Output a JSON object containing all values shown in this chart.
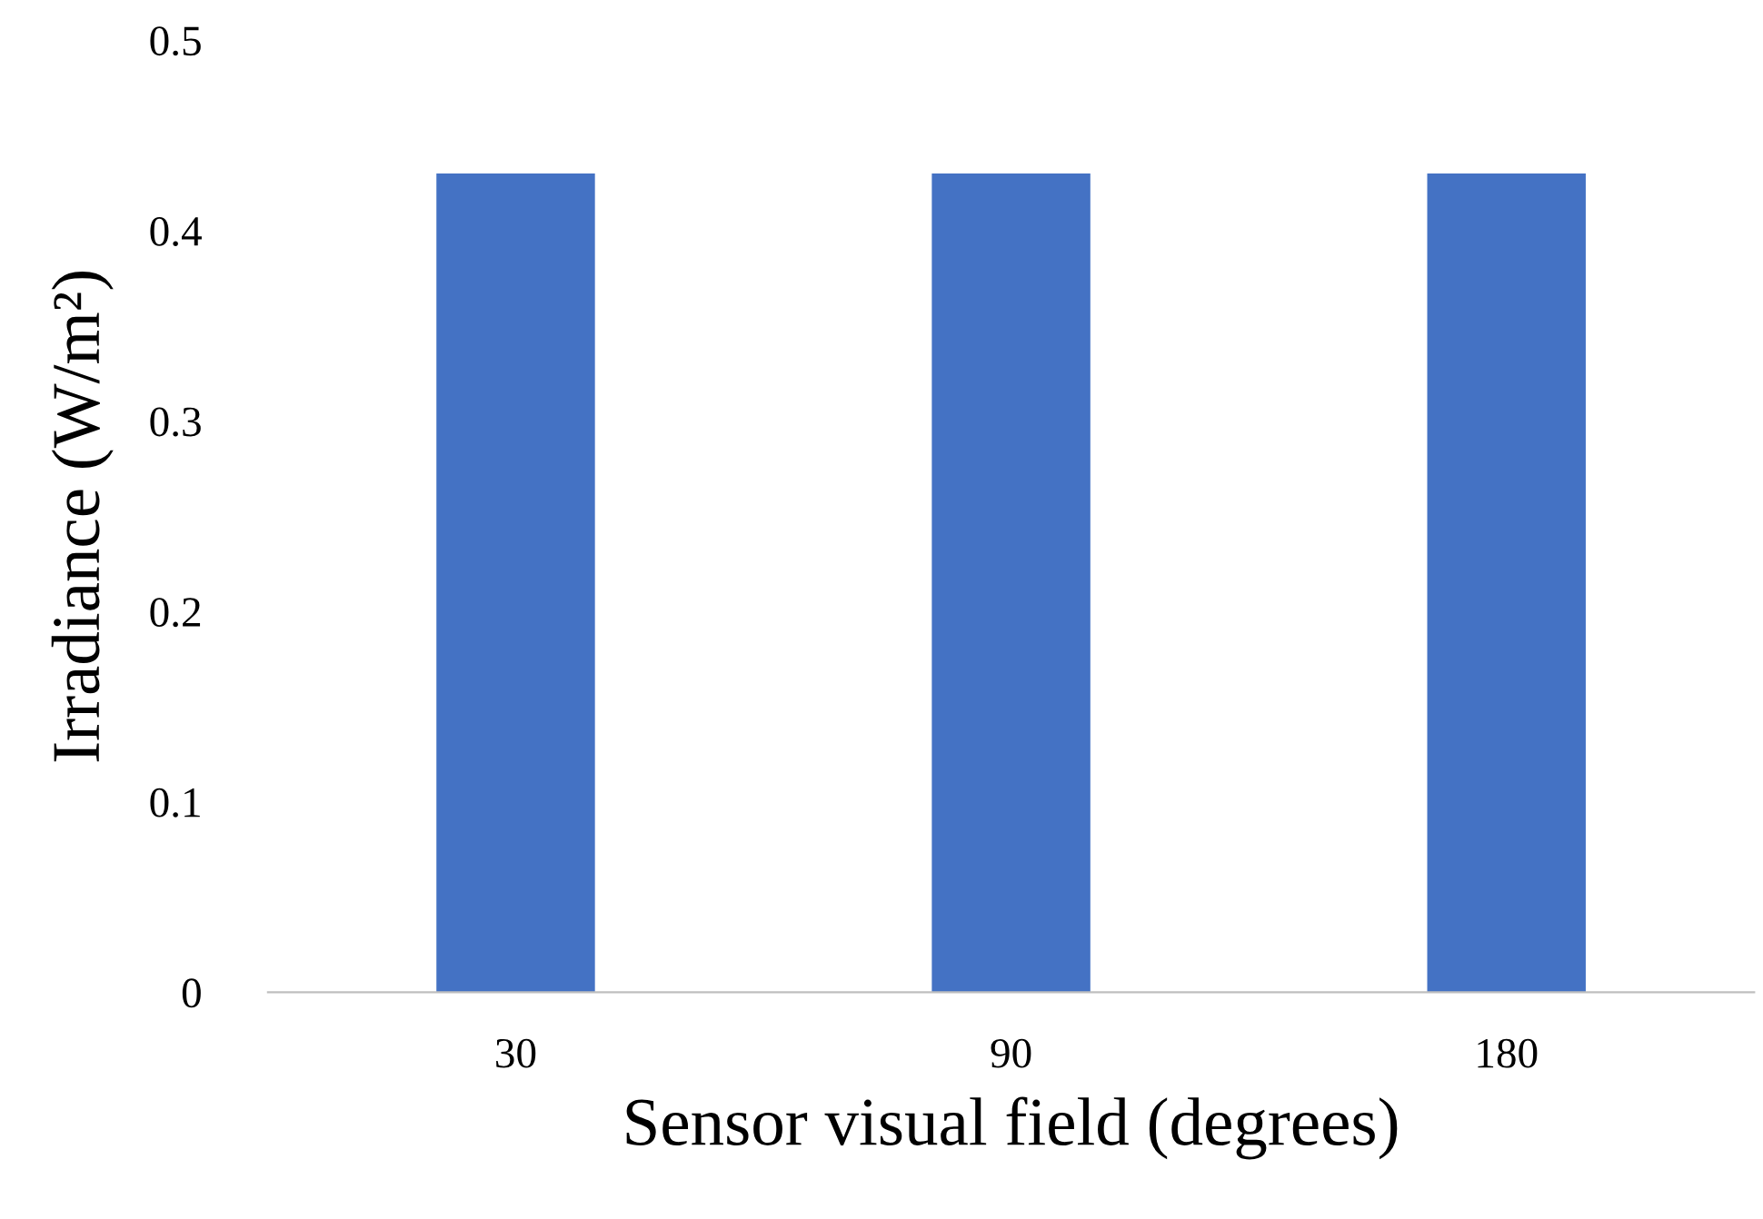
{
  "chart_data": {
    "type": "bar",
    "xlabel": "Sensor visual field (degrees)",
    "ylabel": "Irradiance (W/m²)",
    "categories": [
      "30",
      "90",
      "180"
    ],
    "values": [
      0.43,
      0.43,
      0.43
    ],
    "color": "#4472c4",
    "ylim": [
      0,
      0.5
    ],
    "yticks": [
      0,
      0.1,
      0.2,
      0.3,
      0.4,
      0.5
    ],
    "grid": false
  }
}
